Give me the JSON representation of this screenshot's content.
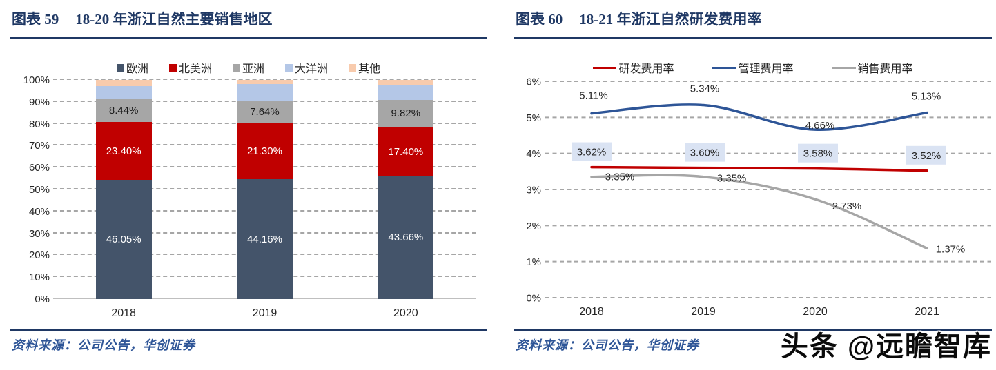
{
  "watermark": {
    "text": "头条 @远瞻智库"
  },
  "panels": [
    {
      "figure_label": "图表 59",
      "title": "18-20 年浙江自然主要销售地区",
      "source": "资料来源：公司公告，华创证券"
    },
    {
      "figure_label": "图表 60",
      "title": "18-21 年浙江自然研发费用率",
      "source": "资料来源：公司公告，华创证券"
    }
  ],
  "colors": {
    "title_navy": "#1f3864",
    "source_blue": "#2e5597",
    "gridline_gray": "#a6a6a6",
    "axis_gray": "#bfbfbf",
    "tick_text": "#262626",
    "label_box_blue": "#dae3f3"
  },
  "chart_data": [
    {
      "type": "bar",
      "subtype": "stacked-100",
      "title": "18-20 年浙江自然主要销售地区",
      "categories": [
        "2018",
        "2019",
        "2020"
      ],
      "ylim": [
        0,
        100
      ],
      "y_ticks": [
        "0%",
        "10%",
        "20%",
        "30%",
        "40%",
        "50%",
        "60%",
        "70%",
        "80%",
        "90%",
        "100%"
      ],
      "grid": "dashed-horizontal",
      "legend_position": "top",
      "series": [
        {
          "name": "欧洲",
          "color": "#44546A",
          "label_color": "#ffffff",
          "values": [
            46.05,
            44.16,
            43.66
          ],
          "data_labels": [
            "46.05%",
            "44.16%",
            "43.66%"
          ],
          "display_height_pct": [
            54.3,
            54.6,
            56.0
          ]
        },
        {
          "name": "北美洲",
          "color": "#C00000",
          "label_color": "#ffffff",
          "values": [
            23.4,
            21.3,
            17.4
          ],
          "data_labels": [
            "23.40%",
            "21.30%",
            "17.40%"
          ],
          "display_height_pct": [
            26.4,
            25.9,
            22.3
          ]
        },
        {
          "name": "亚洲",
          "color": "#A6A6A6",
          "label_color": "#1a1a1a",
          "values": [
            8.44,
            7.64,
            9.82
          ],
          "data_labels": [
            "8.44%",
            "7.64%",
            "9.82%"
          ],
          "display_height_pct": [
            10.4,
            9.8,
            12.7
          ]
        },
        {
          "name": "大洋洲",
          "color": "#B4C7E7",
          "label_color": null,
          "values": null,
          "data_labels": null,
          "display_height_pct": [
            6.0,
            7.9,
            6.9
          ]
        },
        {
          "name": "其他",
          "color": "#F8CBAD",
          "label_color": null,
          "values": null,
          "data_labels": null,
          "display_height_pct": [
            2.9,
            1.8,
            2.1
          ]
        }
      ]
    },
    {
      "type": "line",
      "title": "18-21 年浙江自然研发费用率",
      "x": [
        "2018",
        "2019",
        "2020",
        "2021"
      ],
      "ylim": [
        0,
        6
      ],
      "y_ticks": [
        "0%",
        "1%",
        "2%",
        "3%",
        "4%",
        "5%",
        "6%"
      ],
      "grid": "dashed-horizontal",
      "legend_position": "top",
      "smooth": true,
      "series": [
        {
          "name": "研发费用率",
          "color": "#C00000",
          "values": [
            3.62,
            3.6,
            3.58,
            3.52
          ],
          "data_labels": [
            "3.62%",
            "3.60%",
            "3.58%",
            "3.52%"
          ],
          "label_boxed": true,
          "label_box_color": "#dae3f3"
        },
        {
          "name": "管理费用率",
          "color": "#2E5597",
          "values": [
            5.11,
            5.34,
            4.66,
            5.13
          ],
          "data_labels": [
            "5.11%",
            "5.34%",
            "4.66%",
            "5.13%"
          ],
          "label_boxed": false
        },
        {
          "name": "销售费用率",
          "color": "#A6A6A6",
          "values": [
            3.35,
            3.35,
            2.73,
            1.37
          ],
          "data_labels": [
            "3.35%",
            "3.35%",
            "2.73%",
            "1.37%"
          ],
          "label_boxed": false
        }
      ]
    }
  ]
}
